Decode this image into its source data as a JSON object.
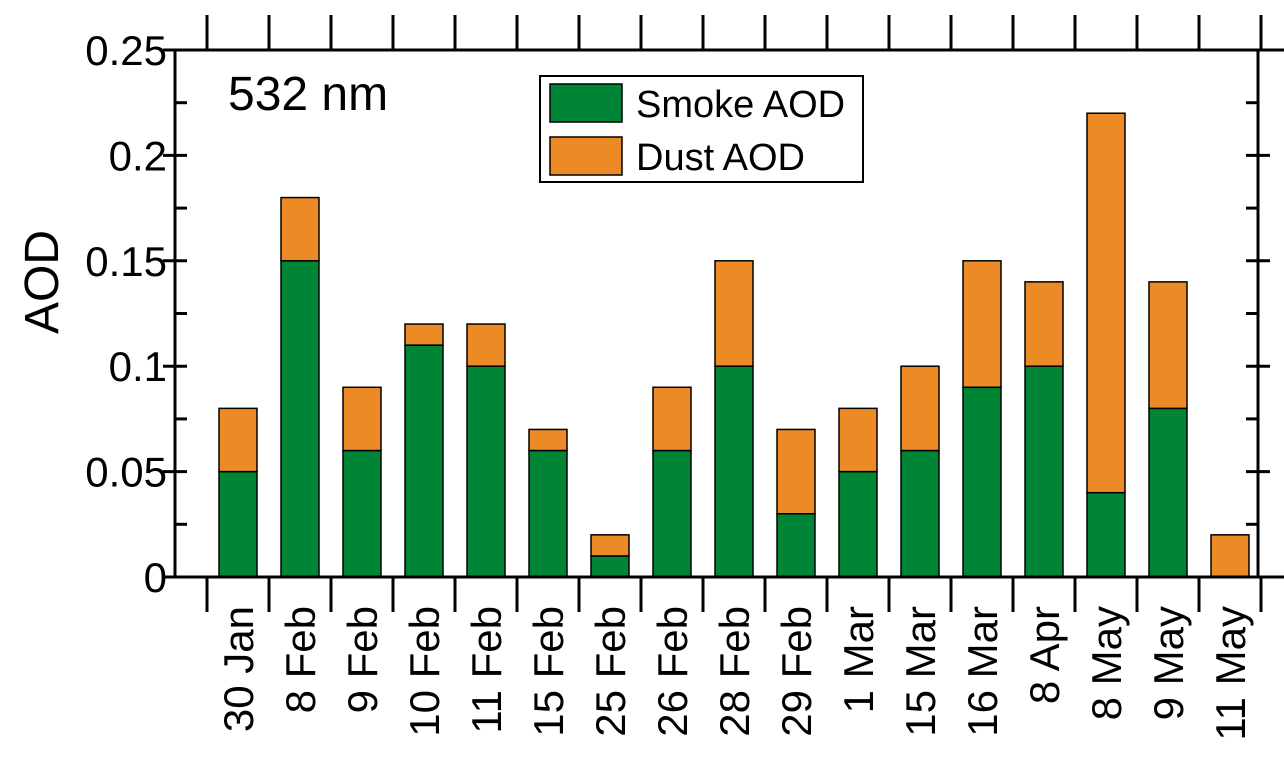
{
  "chart_data": {
    "type": "stacked_bar",
    "annotation": "532 nm",
    "y_label": "AOD",
    "categories": [
      "30 Jan",
      "8 Feb",
      "9 Feb",
      "10 Feb",
      "11 Feb",
      "15 Feb",
      "25 Feb",
      "26 Feb",
      "28 Feb",
      "29 Feb",
      "1 Mar",
      "15 Mar",
      "16 Mar",
      "8 Apr",
      "8 May",
      "9 May",
      "11 May"
    ],
    "series": [
      {
        "name": "Smoke AOD",
        "color": "#008536",
        "values": [
          0.05,
          0.15,
          0.06,
          0.11,
          0.1,
          0.06,
          0.01,
          0.06,
          0.1,
          0.03,
          0.05,
          0.06,
          0.09,
          0.1,
          0.04,
          0.08,
          0
        ]
      },
      {
        "name": "Dust AOD",
        "color": "#ec8a25",
        "values": [
          0.03,
          0.03,
          0.03,
          0.01,
          0.02,
          0.01,
          0.01,
          0.03,
          0.05,
          0.04,
          0.03,
          0.04,
          0.06,
          0.04,
          0.18,
          0.06,
          0.02
        ]
      }
    ],
    "ylim": [
      0,
      0.25
    ],
    "yticks": [
      0,
      0.05,
      0.1,
      0.15,
      0.2,
      0.25
    ],
    "legend": "top-center"
  }
}
